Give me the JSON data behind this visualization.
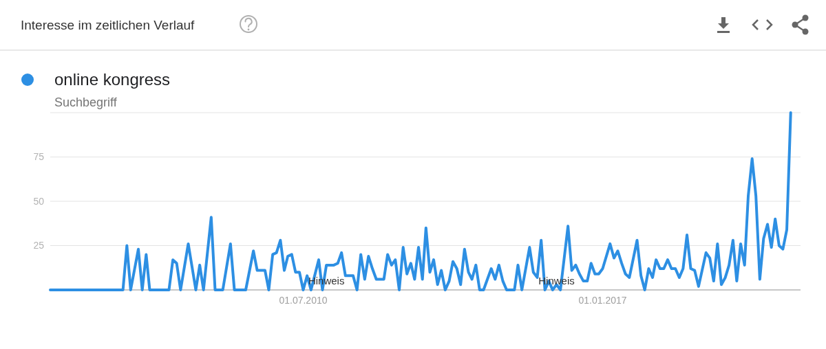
{
  "chart_data": {
    "type": "line",
    "title": "Interesse im zeitlichen Verlauf",
    "x": [
      "2005-01",
      "2006-08",
      "2006-09",
      "2006-10",
      "2006-12",
      "2007-01",
      "2007-02",
      "2007-03",
      "2007-08",
      "2007-09",
      "2007-10",
      "2007-11",
      "2008-01",
      "2008-03",
      "2008-04",
      "2008-05",
      "2008-07",
      "2008-08",
      "2008-10",
      "2008-12",
      "2009-01",
      "2009-04",
      "2009-06",
      "2009-07",
      "2009-09",
      "2009-10",
      "2009-11",
      "2009-12",
      "2010-01",
      "2010-02",
      "2010-03",
      "2010-04",
      "2010-05",
      "2010-06",
      "2010-07",
      "2010-08",
      "2010-09",
      "2010-11",
      "2010-12",
      "2011-01",
      "2011-03",
      "2011-04",
      "2011-05",
      "2011-06",
      "2011-08",
      "2011-09",
      "2011-10",
      "2011-11",
      "2011-12",
      "2012-01",
      "2012-02",
      "2012-04",
      "2012-05",
      "2012-06",
      "2012-07",
      "2012-08",
      "2012-09",
      "2012-10",
      "2012-11",
      "2012-12",
      "2013-01",
      "2013-02",
      "2013-03",
      "2013-04",
      "2013-05",
      "2013-06",
      "2013-07",
      "2013-08",
      "2013-09",
      "2013-10",
      "2013-11",
      "2013-12",
      "2014-01",
      "2014-02",
      "2014-03",
      "2014-04",
      "2014-05",
      "2014-06",
      "2014-08",
      "2014-09",
      "2014-10",
      "2014-11",
      "2014-12",
      "2015-02",
      "2015-03",
      "2015-04",
      "2015-06",
      "2015-07",
      "2015-08",
      "2015-09",
      "2015-10",
      "2015-11",
      "2015-12",
      "2016-01",
      "2016-02",
      "2016-04",
      "2016-05",
      "2016-06",
      "2016-07",
      "2016-08",
      "2016-09",
      "2016-10",
      "2016-11",
      "2016-12",
      "2017-01",
      "2017-03",
      "2017-04",
      "2017-05",
      "2017-06",
      "2017-07",
      "2017-08",
      "2017-10",
      "2017-11",
      "2017-12",
      "2018-01",
      "2018-02",
      "2018-03",
      "2018-04",
      "2018-05",
      "2018-06",
      "2018-07",
      "2018-08",
      "2018-09",
      "2018-10",
      "2018-11",
      "2018-12",
      "2019-01",
      "2019-02",
      "2019-03",
      "2019-04",
      "2019-05",
      "2019-06",
      "2019-07",
      "2019-08",
      "2019-09",
      "2019-10",
      "2019-11",
      "2019-12",
      "2020-01",
      "2020-02",
      "2020-03",
      "2020-04",
      "2020-05",
      "2020-06",
      "2020-07",
      "2020-08",
      "2020-09",
      "2020-10",
      "2020-11",
      "2020-12",
      "2021-01",
      "2021-02"
    ],
    "series": [
      {
        "name": "online kongress",
        "color": "#2d8fe3",
        "values": [
          0,
          0,
          25,
          0,
          23,
          0,
          20,
          0,
          0,
          17,
          15,
          0,
          26,
          0,
          14,
          0,
          41,
          0,
          0,
          26,
          0,
          0,
          22,
          11,
          11,
          0,
          20,
          21,
          28,
          11,
          19,
          20,
          10,
          10,
          0,
          8,
          0,
          17,
          0,
          14,
          14,
          15,
          21,
          8,
          8,
          0,
          20,
          6,
          19,
          12,
          6,
          6,
          20,
          14,
          17,
          0,
          24,
          9,
          15,
          6,
          24,
          6,
          35,
          10,
          17,
          3,
          11,
          0,
          5,
          16,
          12,
          3,
          23,
          10,
          6,
          14,
          0,
          0,
          12,
          6,
          14,
          5,
          0,
          0,
          14,
          0,
          24,
          10,
          7,
          28,
          0,
          5,
          0,
          3,
          0,
          36,
          11,
          14,
          9,
          5,
          5,
          15,
          9,
          9,
          12,
          26,
          18,
          22,
          15,
          9,
          7,
          28,
          8,
          0,
          12,
          7,
          17,
          12,
          12,
          17,
          12,
          12,
          7,
          12,
          31,
          12,
          11,
          2,
          11,
          21,
          18,
          5,
          26,
          3,
          7,
          14,
          28,
          5,
          26,
          14,
          53,
          74,
          53,
          6,
          29,
          37,
          24,
          40,
          25,
          23,
          34,
          100
        ]
      }
    ],
    "xlim": [
      "2005-01-01",
      "2021-04-20"
    ],
    "ylim": [
      0,
      100
    ],
    "xticks": [
      {
        "value": "2010-07-01",
        "label": "01.07.2010"
      },
      {
        "value": "2017-01-01",
        "label": "01.01.2017"
      }
    ],
    "yticks": [
      {
        "value": 0,
        "label": null
      },
      25,
      50,
      75,
      {
        "value": 100,
        "label": null
      }
    ],
    "grid": "y",
    "legend": "top left",
    "annotations": [
      "Suchbegriff",
      {
        "text": "Hinweis",
        "x": "2011-01",
        "y": 5
      },
      {
        "text": "Hinweis",
        "x": "2016-01",
        "y": 5
      }
    ]
  }
}
